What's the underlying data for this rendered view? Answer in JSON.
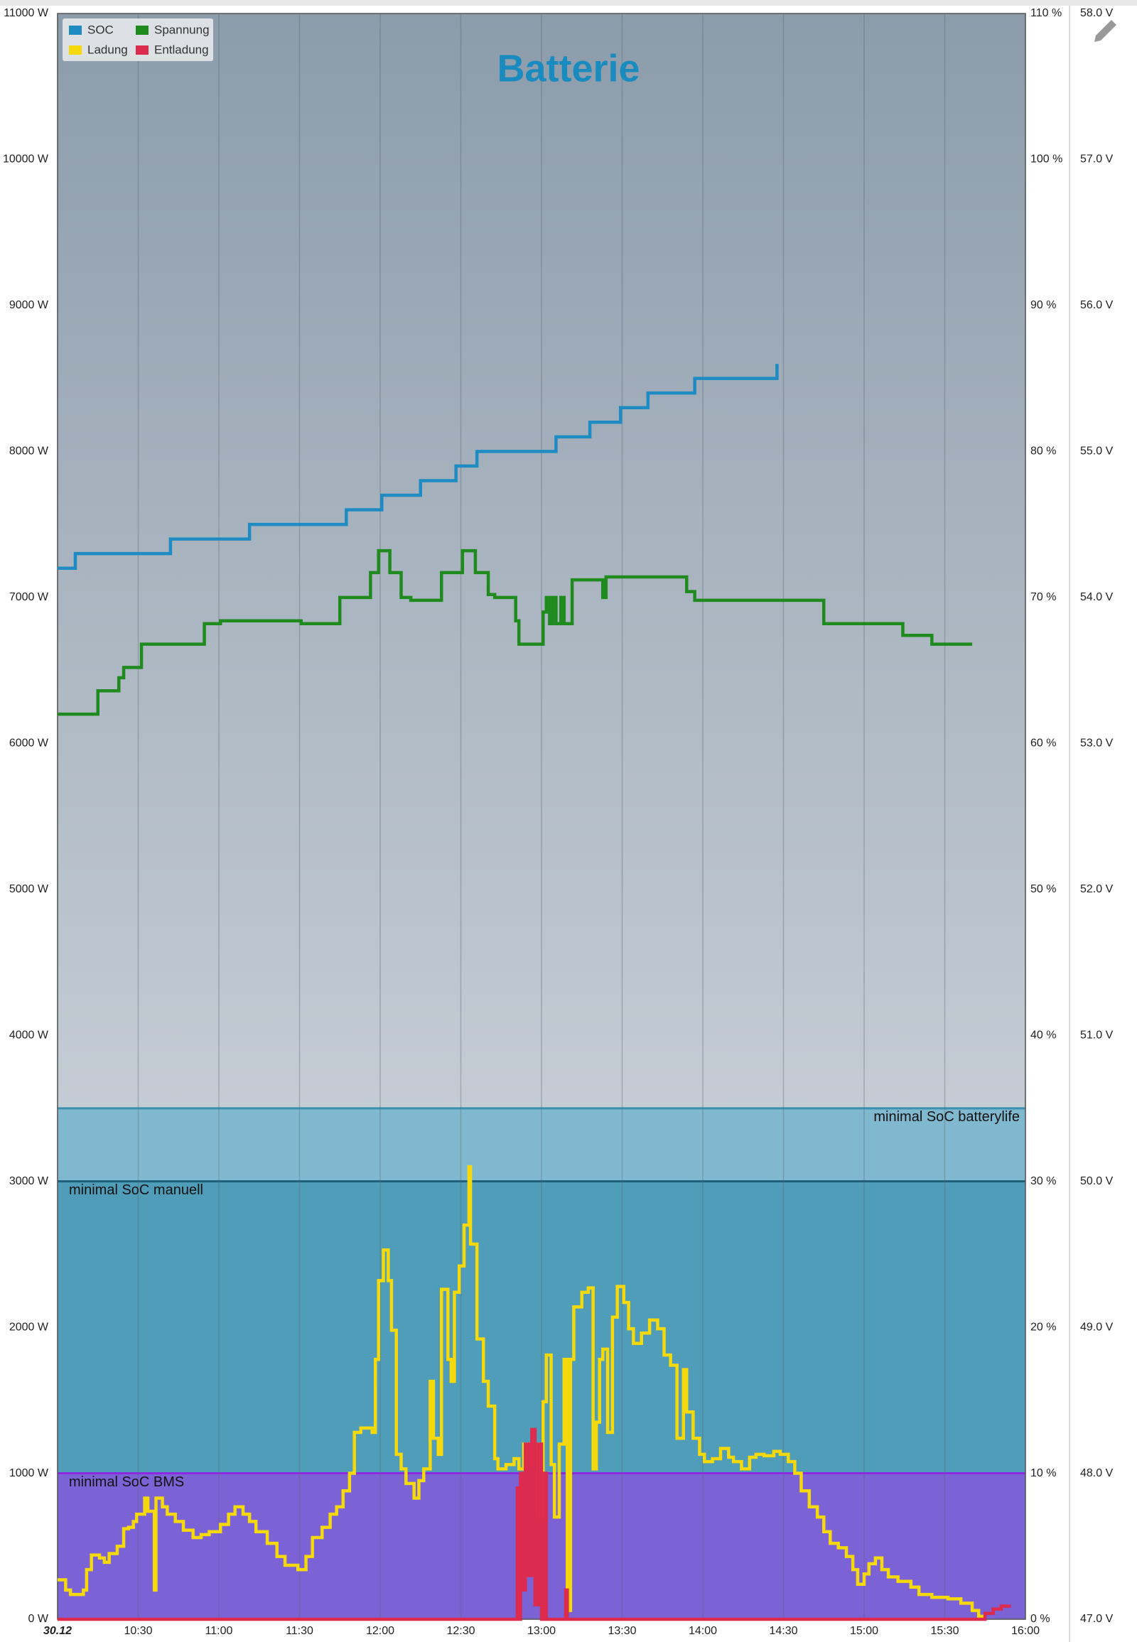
{
  "chart_data": {
    "type": "line",
    "title": "Batterie",
    "xlim": [
      10,
      16
    ],
    "xticks": [
      {
        "value": 10,
        "label": "30.12"
      },
      {
        "value": 10.5,
        "label": "10:30"
      },
      {
        "value": 11,
        "label": "11:00"
      },
      {
        "value": 11.5,
        "label": "11:30"
      },
      {
        "value": 12,
        "label": "12:00"
      },
      {
        "value": 12.5,
        "label": "12:30"
      },
      {
        "value": 13,
        "label": "13:00"
      },
      {
        "value": 13.5,
        "label": "13:30"
      },
      {
        "value": 14,
        "label": "14:00"
      },
      {
        "value": 14.5,
        "label": "14:30"
      },
      {
        "value": 15,
        "label": "15:00"
      },
      {
        "value": 15.5,
        "label": "15:30"
      },
      {
        "value": 16,
        "label": "16:00"
      }
    ],
    "ylim": [
      0,
      11000
    ],
    "yticks": [
      {
        "value": 0,
        "label": "0 W"
      },
      {
        "value": 1000,
        "label": "1000 W"
      },
      {
        "value": 2000,
        "label": "2000 W"
      },
      {
        "value": 3000,
        "label": "3000 W"
      },
      {
        "value": 4000,
        "label": "4000 W"
      },
      {
        "value": 5000,
        "label": "5000 W"
      },
      {
        "value": 6000,
        "label": "6000 W"
      },
      {
        "value": 7000,
        "label": "7000 W"
      },
      {
        "value": 8000,
        "label": "8000 W"
      },
      {
        "value": 9000,
        "label": "9000 W"
      },
      {
        "value": 10000,
        "label": "10000 W"
      },
      {
        "value": 11000,
        "label": "11000 W"
      }
    ],
    "y2lim": [
      0,
      110
    ],
    "y2ticks": [
      {
        "value": 0,
        "label": "0 %"
      },
      {
        "value": 10,
        "label": "10 %"
      },
      {
        "value": 20,
        "label": "20 %"
      },
      {
        "value": 30,
        "label": "30 %"
      },
      {
        "value": 40,
        "label": "40 %"
      },
      {
        "value": 50,
        "label": "50 %"
      },
      {
        "value": 60,
        "label": "60 %"
      },
      {
        "value": 70,
        "label": "70 %"
      },
      {
        "value": 80,
        "label": "80 %"
      },
      {
        "value": 90,
        "label": "90 %"
      },
      {
        "value": 100,
        "label": "100 %"
      },
      {
        "value": 110,
        "label": "110 %"
      }
    ],
    "y3lim": [
      47,
      58
    ],
    "y3ticks": [
      {
        "value": 47,
        "label": "47.0 V"
      },
      {
        "value": 48,
        "label": "48.0 V"
      },
      {
        "value": 49,
        "label": "49.0 V"
      },
      {
        "value": 50,
        "label": "50.0 V"
      },
      {
        "value": 51,
        "label": "51.0 V"
      },
      {
        "value": 52,
        "label": "52.0 V"
      },
      {
        "value": 53,
        "label": "53.0 V"
      },
      {
        "value": 54,
        "label": "54.0 V"
      },
      {
        "value": 55,
        "label": "55.0 V"
      },
      {
        "value": 56,
        "label": "56.0 V"
      },
      {
        "value": 57,
        "label": "57.0 V"
      },
      {
        "value": 58,
        "label": "58.0 V"
      }
    ],
    "grid": "x",
    "legend": "top-left",
    "bands": [
      {
        "label": "minimal SoC batterylife",
        "value": 35,
        "color": "#80b9cf",
        "line": "#3a8fb0"
      },
      {
        "label": "minimal SoC manuell",
        "value": 30,
        "color": "#4f9db8",
        "line": "#1f5f7a"
      },
      {
        "label": "minimal SoC BMS",
        "value": 10,
        "color": "#7b63d6",
        "line": "#8a2be2"
      }
    ],
    "series": [
      {
        "name": "SOC",
        "color": "#1e8bc3",
        "axis": "y2",
        "x": [
          10.0,
          10.11,
          10.7,
          11.19,
          11.79,
          12.01,
          12.25,
          12.47,
          12.6,
          13.09,
          13.3,
          13.49,
          13.66,
          13.95,
          14.46
        ],
        "values": [
          72,
          73,
          74,
          75,
          76,
          77,
          78,
          79,
          80,
          81,
          82,
          83,
          84,
          85,
          86
        ]
      },
      {
        "name": "Spannung",
        "color": "#1f8b1f",
        "axis": "y3",
        "x": [
          10.0,
          10.25,
          10.38,
          10.41,
          10.52,
          10.91,
          11.01,
          11.51,
          11.75,
          11.94,
          11.99,
          12.06,
          12.13,
          12.19,
          12.38,
          12.51,
          12.59,
          12.67,
          12.71,
          12.84,
          12.86,
          13.01,
          13.03,
          13.05,
          13.07,
          13.09,
          13.12,
          13.14,
          13.19,
          13.38,
          13.4,
          13.9,
          13.95,
          14.75,
          15.24,
          15.42,
          15.67
        ],
        "values": [
          53.2,
          53.36,
          53.45,
          53.52,
          53.68,
          53.82,
          53.84,
          53.82,
          54.0,
          54.17,
          54.32,
          54.17,
          54.0,
          53.98,
          54.17,
          54.32,
          54.17,
          54.02,
          54.0,
          53.84,
          53.68,
          53.9,
          54.0,
          53.82,
          54.0,
          53.82,
          54.0,
          53.82,
          54.12,
          54.0,
          54.14,
          54.04,
          53.98,
          53.82,
          53.74,
          53.68,
          53.68
        ]
      },
      {
        "name": "Ladung",
        "color": "#f5d90a",
        "x": [
          10.0,
          10.05,
          10.08,
          10.16,
          10.18,
          10.21,
          10.26,
          10.29,
          10.32,
          10.37,
          10.41,
          10.44,
          10.47,
          10.49,
          10.54,
          10.56,
          10.6,
          10.61,
          10.65,
          10.68,
          10.73,
          10.78,
          10.84,
          10.89,
          10.94,
          11.01,
          11.06,
          11.1,
          11.15,
          11.19,
          11.23,
          11.3,
          11.36,
          11.41,
          11.49,
          11.54,
          11.58,
          11.64,
          11.69,
          11.73,
          11.77,
          11.81,
          11.84,
          11.88,
          11.95,
          11.97,
          11.99,
          12.02,
          12.05,
          12.07,
          12.1,
          12.13,
          12.16,
          12.21,
          12.24,
          12.27,
          12.31,
          12.33,
          12.36,
          12.38,
          12.42,
          12.44,
          12.46,
          12.49,
          12.52,
          12.55,
          12.56,
          12.6,
          12.64,
          12.67,
          12.71,
          12.73,
          12.78,
          12.83,
          12.86,
          12.89,
          12.92,
          12.96,
          12.98,
          13.01,
          13.03,
          13.06,
          13.08,
          13.11,
          13.14,
          13.16,
          13.18,
          13.2,
          13.25,
          13.29,
          13.32,
          13.34,
          13.36,
          13.38,
          13.41,
          13.44,
          13.47,
          13.51,
          13.54,
          13.57,
          13.62,
          13.67,
          13.72,
          13.76,
          13.8,
          13.84,
          13.88,
          13.9,
          13.94,
          13.98,
          14.01,
          14.06,
          14.11,
          14.16,
          14.19,
          14.24,
          14.29,
          14.33,
          14.38,
          14.44,
          14.48,
          14.53,
          14.57,
          14.61,
          14.66,
          14.71,
          14.75,
          14.79,
          14.84,
          14.89,
          14.93,
          14.96,
          15.0,
          15.03,
          15.07,
          15.11,
          15.15,
          15.21,
          15.29,
          15.34,
          15.42,
          15.52,
          15.6,
          15.67,
          15.71,
          15.73
        ],
        "values": [
          270,
          200,
          170,
          200,
          340,
          440,
          420,
          390,
          450,
          500,
          620,
          630,
          670,
          720,
          830,
          740,
          200,
          830,
          770,
          720,
          670,
          610,
          560,
          580,
          600,
          650,
          720,
          770,
          720,
          670,
          600,
          520,
          430,
          370,
          340,
          430,
          560,
          630,
          720,
          770,
          880,
          1000,
          1280,
          1310,
          1280,
          1780,
          2320,
          2530,
          2320,
          1980,
          1130,
          1030,
          930,
          830,
          950,
          1030,
          1630,
          1240,
          1130,
          2260,
          1780,
          1630,
          2240,
          2420,
          2700,
          3100,
          2570,
          1920,
          1630,
          1460,
          1100,
          1030,
          1060,
          1100,
          1030,
          1200,
          1060,
          1200,
          700,
          1490,
          1810,
          1060,
          700,
          1200,
          1780,
          60,
          1780,
          2140,
          2240,
          2270,
          1030,
          1350,
          1780,
          1850,
          1280,
          2070,
          2280,
          2170,
          1990,
          1890,
          1960,
          2050,
          1990,
          1810,
          1740,
          1240,
          1710,
          1420,
          1240,
          1130,
          1080,
          1100,
          1170,
          1110,
          1080,
          1030,
          1110,
          1130,
          1120,
          1150,
          1130,
          1080,
          1000,
          880,
          770,
          700,
          600,
          520,
          490,
          430,
          340,
          240,
          310,
          380,
          420,
          340,
          290,
          260,
          220,
          170,
          150,
          140,
          110,
          60,
          20,
          0
        ]
      },
      {
        "name": "Entladung",
        "color": "#dc2b4d",
        "x": [
          10.0,
          12.84,
          12.85,
          12.86,
          12.87,
          12.88,
          12.9,
          12.92,
          12.94,
          12.96,
          12.98,
          13.0,
          13.02,
          13.03,
          13.15,
          13.16,
          15.73,
          15.75,
          15.8,
          15.85,
          15.9
        ],
        "values": [
          0,
          0,
          900,
          0,
          1000,
          200,
          1200,
          300,
          1300,
          100,
          1200,
          0,
          1000,
          0,
          200,
          0,
          0,
          40,
          70,
          90,
          100
        ]
      }
    ]
  }
}
